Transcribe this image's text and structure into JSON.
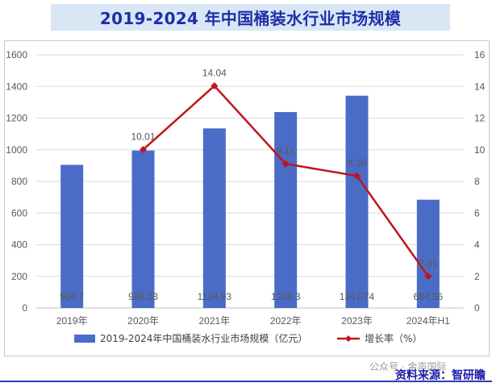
{
  "title": "2019-2024 年中国桶装水行业市场规模",
  "source": "资料来源：智研瞻",
  "watermark": "公众号 · 金声国际",
  "legend": {
    "bar": "2019-2024年中国桶装水行业市场规模（亿元）",
    "line": "增长率（%）"
  },
  "colors": {
    "bar": "#4a6cc6",
    "line": "#c0141c",
    "title_bg": "#d9e6f5",
    "title_text": "#1f2fa8"
  },
  "chart_data": {
    "type": "bar",
    "categories": [
      "2019年",
      "2020年",
      "2021年",
      "2022年",
      "2023年",
      "2024年H1"
    ],
    "series": [
      {
        "name": "2019-2024年中国桶装水行业市场规模（亿元）",
        "type": "bar",
        "axis": "left",
        "values": [
          904.7,
          995.23,
          1134.93,
          1238.3,
          1341.74,
          684.36
        ],
        "labels": [
          "904.7",
          "995.23",
          "1134.93",
          "1238.3",
          "1341.74",
          "684.36"
        ]
      },
      {
        "name": "增长率（%）",
        "type": "line",
        "axis": "right",
        "x": [
          "2020年",
          "2021年",
          "2022年",
          "2023年",
          "2024年H1"
        ],
        "values": [
          10.01,
          14.04,
          9.11,
          8.35,
          2.01
        ],
        "labels": [
          "10.01",
          "14.04",
          "9.11",
          "8.35",
          "2.01"
        ]
      }
    ],
    "ylim_left": [
      0,
      1600
    ],
    "yticks_left": [
      0,
      200,
      400,
      600,
      800,
      1000,
      1200,
      1400,
      1600
    ],
    "ylim_right": [
      0,
      16
    ],
    "yticks_right": [
      0,
      2,
      4,
      6,
      8,
      10,
      12,
      14,
      16
    ],
    "grid": true,
    "legend_position": "bottom"
  }
}
